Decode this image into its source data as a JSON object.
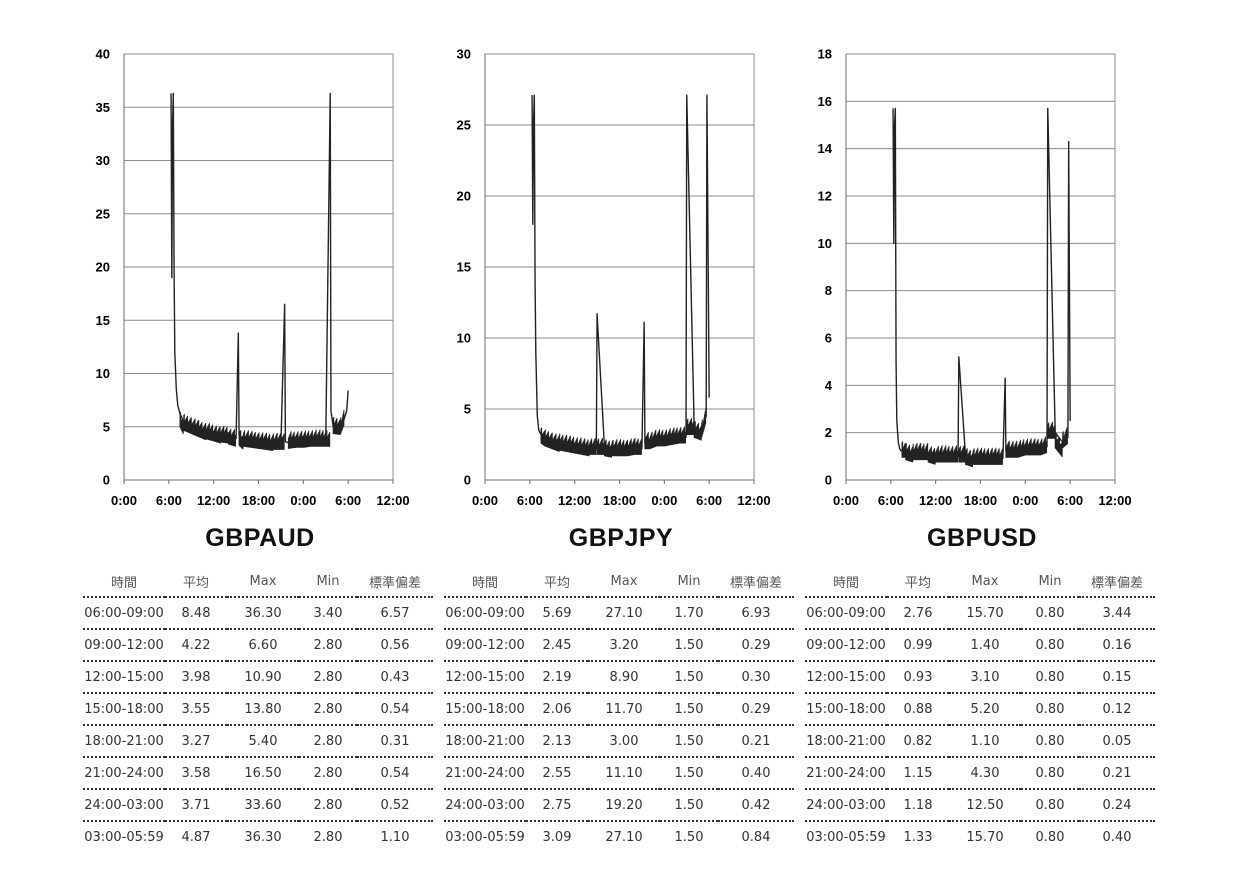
{
  "chart_data": [
    {
      "type": "line",
      "title": "GBPAUD",
      "ylim": [
        0,
        40
      ],
      "yticks": [
        "0",
        "5",
        "10",
        "15",
        "20",
        "25",
        "30",
        "35",
        "40"
      ],
      "xticks": [
        "0:00",
        "6:00",
        "12:00",
        "18:00",
        "0:00",
        "6:00",
        "12:00"
      ],
      "grid": true,
      "series_color": "#222222",
      "series": [
        {
          "x": [
            0.0,
            6.3,
            6.4,
            6.5,
            6.6,
            6.7,
            6.8,
            7.0,
            7.2,
            7.5,
            8,
            9,
            10,
            11,
            12,
            13,
            14,
            15,
            15.3,
            15.4,
            16,
            17,
            18,
            19,
            20,
            21,
            21.5,
            21.6,
            22,
            23,
            24,
            25,
            26,
            27,
            27.6,
            27.7,
            28,
            29,
            29.5,
            29.8,
            30.0
          ],
          "y": [
            null,
            36.3,
            19,
            33.5,
            36.3,
            20,
            12,
            8.5,
            7,
            6.2,
            5.5,
            5.2,
            4.9,
            4.6,
            4.4,
            4.2,
            4.1,
            3.9,
            13.8,
            4.2,
            3.8,
            3.7,
            3.6,
            3.5,
            3.4,
            3.4,
            16.5,
            3.6,
            3.5,
            3.6,
            3.6,
            3.7,
            3.7,
            3.7,
            36.3,
            6.5,
            5.0,
            4.9,
            5.8,
            6.5,
            8.4
          ]
        }
      ]
    },
    {
      "type": "line",
      "title": "GBPJPY",
      "ylim": [
        0,
        30
      ],
      "yticks": [
        "0",
        "5",
        "10",
        "15",
        "20",
        "25",
        "30"
      ],
      "xticks": [
        "0:00",
        "6:00",
        "12:00",
        "18:00",
        "0:00",
        "6:00",
        "12:00"
      ],
      "grid": true,
      "series_color": "#222222",
      "series": [
        {
          "x": [
            0.0,
            6.3,
            6.4,
            6.5,
            6.6,
            6.7,
            6.8,
            7.0,
            7.2,
            7.5,
            8,
            9,
            10,
            11,
            12,
            13,
            14,
            14.9,
            15.0,
            16,
            17,
            18,
            19,
            20,
            21,
            21.3,
            21.4,
            22,
            23,
            24,
            25,
            26,
            26.9,
            27.0,
            28,
            29,
            29.6,
            29.7,
            30.0
          ],
          "y": [
            null,
            27.1,
            18,
            25.3,
            27.1,
            14,
            9,
            4.5,
            3.5,
            3.2,
            3.0,
            2.8,
            2.6,
            2.5,
            2.4,
            2.3,
            2.2,
            2.2,
            11.7,
            2.2,
            2.1,
            2.1,
            2.1,
            2.2,
            2.2,
            11.1,
            2.6,
            2.6,
            2.8,
            2.8,
            2.9,
            3.0,
            3.0,
            27.1,
            3.6,
            3.4,
            4.5,
            27.1,
            5.8
          ]
        }
      ]
    },
    {
      "type": "line",
      "title": "GBPUSD",
      "ylim": [
        0,
        18
      ],
      "yticks": [
        "0",
        "2",
        "4",
        "6",
        "8",
        "10",
        "12",
        "14",
        "16",
        "18"
      ],
      "xticks": [
        "0:00",
        "6:00",
        "12:00",
        "18:00",
        "0:00",
        "6:00",
        "12:00"
      ],
      "grid": true,
      "series_color": "#222222",
      "series": [
        {
          "x": [
            0.0,
            6.3,
            6.4,
            6.5,
            6.6,
            6.7,
            6.8,
            7.0,
            7.2,
            7.5,
            8,
            9,
            10,
            11,
            12,
            13,
            14,
            15.0,
            15.1,
            16,
            17,
            18,
            19,
            20,
            21,
            21.3,
            21.4,
            22,
            23,
            24,
            25,
            26,
            26.9,
            27.0,
            28,
            29,
            29.7,
            29.8,
            30.0
          ],
          "y": [
            null,
            15.7,
            10,
            15.0,
            15.7,
            5,
            2.5,
            1.6,
            1.3,
            1.2,
            1.2,
            1.1,
            1.1,
            1.1,
            1.0,
            1.0,
            1.0,
            1.0,
            5.2,
            1.0,
            0.9,
            0.9,
            0.9,
            0.9,
            0.9,
            4.3,
            1.2,
            1.2,
            1.2,
            1.3,
            1.3,
            1.3,
            1.4,
            15.7,
            2.0,
            1.6,
            1.8,
            14.3,
            2.5
          ]
        }
      ]
    }
  ],
  "tables": [
    {
      "pair": "GBPAUD",
      "headers": [
        "時間",
        "平均",
        "Max",
        "Min",
        "標準偏差"
      ],
      "rows": [
        [
          "06:00-09:00",
          "8.48",
          "36.30",
          "3.40",
          "6.57"
        ],
        [
          "09:00-12:00",
          "4.22",
          "6.60",
          "2.80",
          "0.56"
        ],
        [
          "12:00-15:00",
          "3.98",
          "10.90",
          "2.80",
          "0.43"
        ],
        [
          "15:00-18:00",
          "3.55",
          "13.80",
          "2.80",
          "0.54"
        ],
        [
          "18:00-21:00",
          "3.27",
          "5.40",
          "2.80",
          "0.31"
        ],
        [
          "21:00-24:00",
          "3.58",
          "16.50",
          "2.80",
          "0.54"
        ],
        [
          "24:00-03:00",
          "3.71",
          "33.60",
          "2.80",
          "0.52"
        ],
        [
          "03:00-05:59",
          "4.87",
          "36.30",
          "2.80",
          "1.10"
        ]
      ]
    },
    {
      "pair": "GBPJPY",
      "headers": [
        "時間",
        "平均",
        "Max",
        "Min",
        "標準偏差"
      ],
      "rows": [
        [
          "06:00-09:00",
          "5.69",
          "27.10",
          "1.70",
          "6.93"
        ],
        [
          "09:00-12:00",
          "2.45",
          "3.20",
          "1.50",
          "0.29"
        ],
        [
          "12:00-15:00",
          "2.19",
          "8.90",
          "1.50",
          "0.30"
        ],
        [
          "15:00-18:00",
          "2.06",
          "11.70",
          "1.50",
          "0.29"
        ],
        [
          "18:00-21:00",
          "2.13",
          "3.00",
          "1.50",
          "0.21"
        ],
        [
          "21:00-24:00",
          "2.55",
          "11.10",
          "1.50",
          "0.40"
        ],
        [
          "24:00-03:00",
          "2.75",
          "19.20",
          "1.50",
          "0.42"
        ],
        [
          "03:00-05:59",
          "3.09",
          "27.10",
          "1.50",
          "0.84"
        ]
      ]
    },
    {
      "pair": "GBPUSD",
      "headers": [
        "時間",
        "平均",
        "Max",
        "Min",
        "標準偏差"
      ],
      "rows": [
        [
          "06:00-09:00",
          "2.76",
          "15.70",
          "0.80",
          "3.44"
        ],
        [
          "09:00-12:00",
          "0.99",
          "1.40",
          "0.80",
          "0.16"
        ],
        [
          "12:00-15:00",
          "0.93",
          "3.10",
          "0.80",
          "0.15"
        ],
        [
          "15:00-18:00",
          "0.88",
          "5.20",
          "0.80",
          "0.12"
        ],
        [
          "18:00-21:00",
          "0.82",
          "1.10",
          "0.80",
          "0.05"
        ],
        [
          "21:00-24:00",
          "1.15",
          "4.30",
          "0.80",
          "0.21"
        ],
        [
          "24:00-03:00",
          "1.18",
          "12.50",
          "0.80",
          "0.24"
        ],
        [
          "03:00-05:59",
          "1.33",
          "15.70",
          "0.80",
          "0.40"
        ]
      ]
    }
  ]
}
